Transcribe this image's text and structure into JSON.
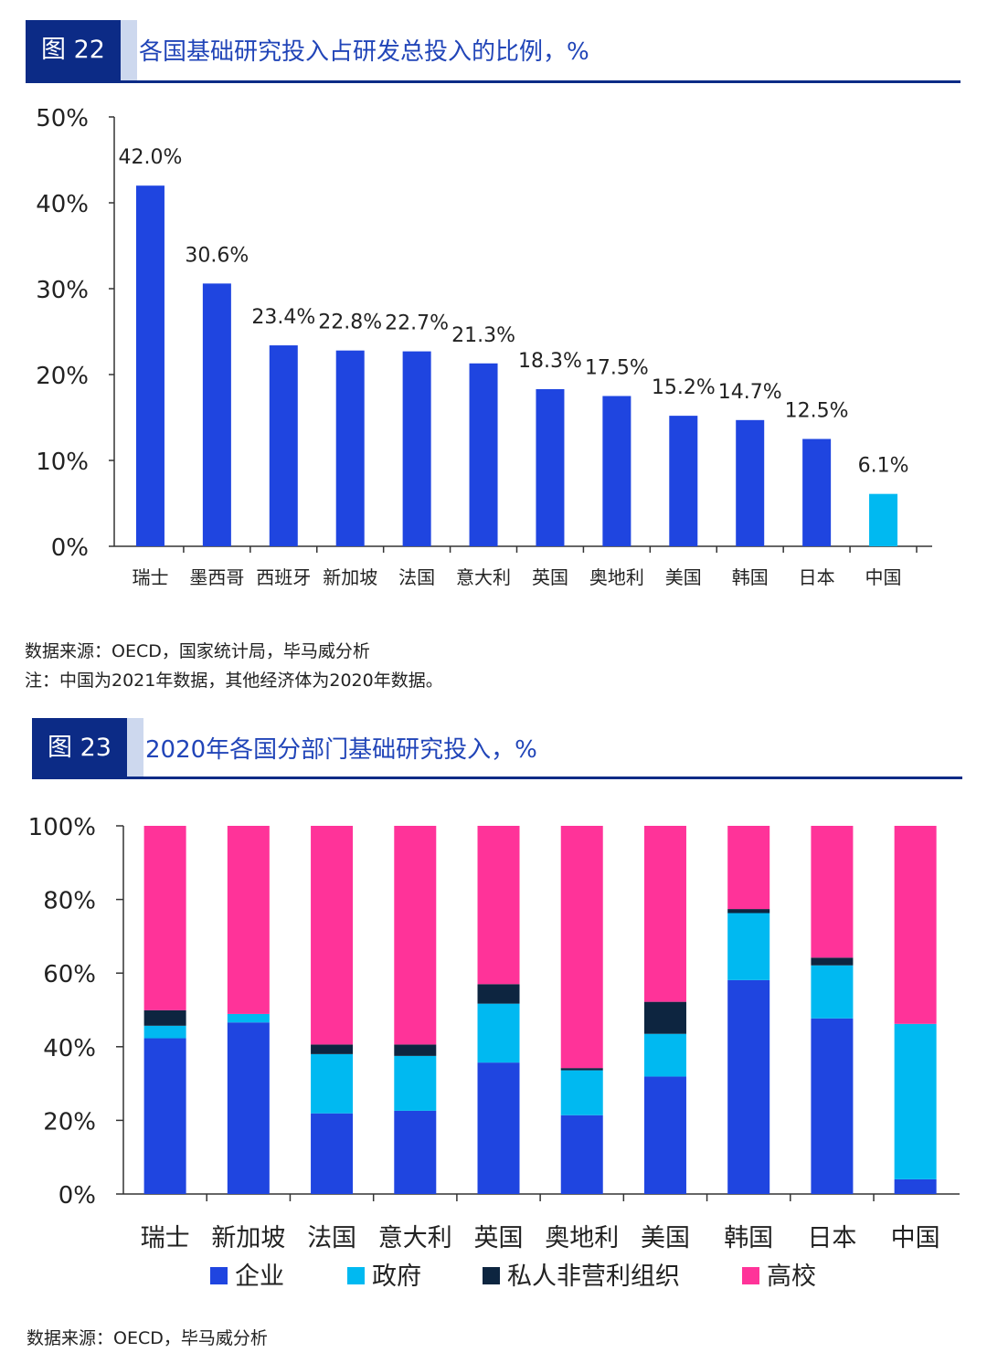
{
  "figure22": {
    "number": "图 22",
    "title": "各国基础研究投入占研发总投入的比例，%",
    "source": "数据来源：OECD，国家统计局，毕马威分析",
    "note": "注：中国为2021年数据，其他经济体为2020年数据。"
  },
  "figure23": {
    "number": "图 23",
    "title": "2020年各国分部门基础研究投入，%",
    "source": "数据来源：OECD，毕马威分析"
  },
  "chart_data": [
    {
      "type": "bar",
      "categories": [
        "瑞士",
        "墨西哥",
        "西班牙",
        "新加坡",
        "法国",
        "意大利",
        "英国",
        "奥地利",
        "美国",
        "韩国",
        "日本",
        "中国"
      ],
      "values": [
        42.0,
        30.6,
        23.4,
        22.8,
        22.7,
        21.3,
        18.3,
        17.5,
        15.2,
        14.7,
        12.5,
        6.1
      ],
      "data_labels": [
        "42.0%",
        "30.6%",
        "23.4%",
        "22.8%",
        "22.7%",
        "21.3%",
        "18.3%",
        "17.5%",
        "15.2%",
        "14.7%",
        "12.5%",
        "6.1%"
      ],
      "ylim": [
        0,
        50
      ],
      "yticks": [
        "0%",
        "10%",
        "20%",
        "30%",
        "40%",
        "50%"
      ],
      "colors": {
        "default": "#1f45e0",
        "highlight": "#00b9f1"
      },
      "highlight_category": "中国",
      "grid": false
    },
    {
      "type": "bar",
      "stacked": true,
      "categories": [
        "瑞士",
        "新加坡",
        "法国",
        "意大利",
        "英国",
        "奥地利",
        "美国",
        "韩国",
        "日本",
        "中国"
      ],
      "series": [
        {
          "name": "企业",
          "color": "#1f45e0",
          "values": [
            42.3,
            46.6,
            21.9,
            22.6,
            35.7,
            21.4,
            31.9,
            58.1,
            47.7,
            4.0
          ]
        },
        {
          "name": "政府",
          "color": "#00b9f1",
          "values": [
            3.4,
            2.3,
            16.1,
            14.9,
            16.0,
            12.2,
            11.6,
            18.2,
            14.4,
            42.2
          ]
        },
        {
          "name": "私人非营利组织",
          "color": "#0d2540",
          "values": [
            4.2,
            0,
            2.6,
            3.1,
            5.3,
            0.6,
            8.7,
            1.1,
            2.1,
            0
          ]
        },
        {
          "name": "高校",
          "color": "#ff3399",
          "values": [
            50.1,
            51.1,
            59.4,
            59.4,
            43.0,
            65.8,
            47.8,
            22.6,
            35.8,
            53.8
          ]
        }
      ],
      "ylim": [
        0,
        100
      ],
      "yticks": [
        "0%",
        "20%",
        "40%",
        "60%",
        "80%",
        "100%"
      ],
      "legend": "bottom",
      "grid": false
    }
  ]
}
